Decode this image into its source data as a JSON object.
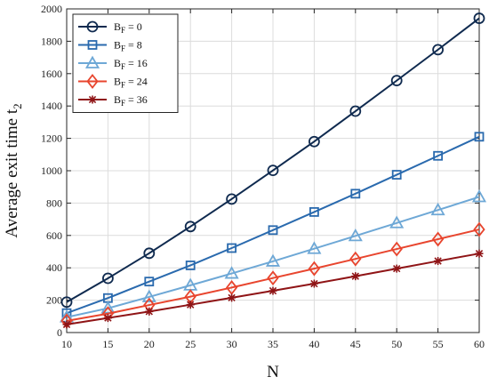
{
  "chart_data": {
    "type": "line",
    "xlabel": "N",
    "ylabel": "Average exit time t",
    "ylabel_sub": "2",
    "x": [
      10,
      15,
      20,
      25,
      30,
      35,
      40,
      45,
      50,
      55,
      60
    ],
    "xlim": [
      10,
      60
    ],
    "ylim": [
      0,
      2000
    ],
    "xticks": [
      10,
      15,
      20,
      25,
      30,
      35,
      40,
      45,
      50,
      55,
      60
    ],
    "yticks": [
      0,
      200,
      400,
      600,
      800,
      1000,
      1200,
      1400,
      1600,
      1800,
      2000
    ],
    "grid": true,
    "legend_position": "top-left",
    "series": [
      {
        "legend_main": "B",
        "legend_sub": "F",
        "legend_rest": " = 0",
        "color": "#0f2a4f",
        "marker": "circle",
        "values": [
          188,
          335,
          490,
          655,
          825,
          1002,
          1180,
          1368,
          1557,
          1748,
          1942
        ]
      },
      {
        "legend_main": "B",
        "legend_sub": "F",
        "legend_rest": " = 8",
        "color": "#2a6aae",
        "marker": "square",
        "values": [
          120,
          213,
          315,
          415,
          522,
          633,
          745,
          858,
          975,
          1092,
          1210
        ]
      },
      {
        "legend_main": "B",
        "legend_sub": "F",
        "legend_rest": " = 16",
        "color": "#6ea8d6",
        "marker": "triangle",
        "values": [
          95,
          150,
          220,
          292,
          365,
          440,
          518,
          597,
          677,
          757,
          838
        ]
      },
      {
        "legend_main": "B",
        "legend_sub": "F",
        "legend_rest": " = 24",
        "color": "#e8452e",
        "marker": "diamond",
        "values": [
          72,
          117,
          170,
          222,
          278,
          337,
          395,
          455,
          516,
          577,
          637
        ]
      },
      {
        "legend_main": "B",
        "legend_sub": "F",
        "legend_rest": " = 36",
        "color": "#8f1416",
        "marker": "star",
        "values": [
          50,
          90,
          130,
          172,
          215,
          258,
          302,
          348,
          395,
          442,
          488
        ]
      }
    ]
  }
}
